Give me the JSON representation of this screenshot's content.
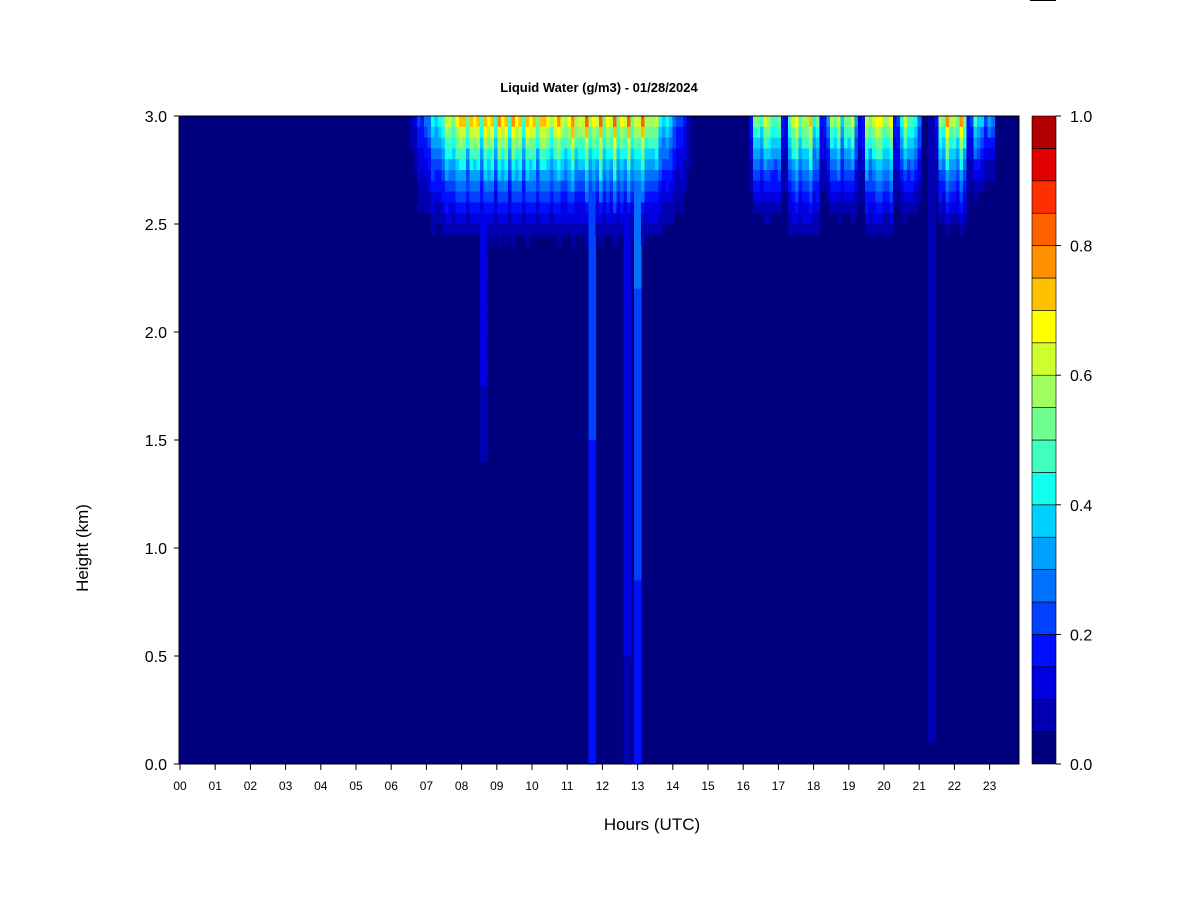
{
  "chart_data": {
    "type": "heatmap",
    "title": "Liquid Water (g/m3) - 01/28/2024",
    "xlabel": "Hours (UTC)",
    "ylabel": "Height (km)",
    "xlim": [
      0,
      24
    ],
    "ylim": [
      0.0,
      3.0
    ],
    "x_tick_labels": [
      "00",
      "01",
      "02",
      "03",
      "04",
      "05",
      "06",
      "07",
      "08",
      "09",
      "10",
      "11",
      "12",
      "13",
      "14",
      "15",
      "16",
      "17",
      "18",
      "19",
      "20",
      "21",
      "22",
      "23"
    ],
    "y_ticks": [
      0.0,
      0.5,
      1.0,
      1.5,
      2.0,
      2.5,
      3.0
    ],
    "y_tick_labels": [
      "0.0",
      "0.5",
      "1.0",
      "1.5",
      "2.0",
      "2.5",
      "3.0"
    ],
    "colorbar": {
      "range": [
        0.0,
        1.0
      ],
      "levels": 20,
      "tick_values": [
        0.0,
        0.2,
        0.4,
        0.6,
        0.8,
        1.0
      ],
      "tick_labels": [
        "0.0",
        "0.2",
        "0.4",
        "0.6",
        "0.8",
        "1.0"
      ],
      "colors": [
        "#00007f",
        "#0000b0",
        "#0000e0",
        "#0010ff",
        "#0040ff",
        "#0070ff",
        "#00a0ff",
        "#00d0ff",
        "#10ffef",
        "#40ffbf",
        "#70ff8f",
        "#a0ff5f",
        "#d0ff2f",
        "#ffff00",
        "#ffc000",
        "#ff9000",
        "#ff6000",
        "#ff3000",
        "#e00000",
        "#b00000",
        "#7f0000"
      ]
    },
    "cloud_segments": [
      {
        "start": 6.5,
        "end": 14.75,
        "max_value": 0.9,
        "base_km": 2.3
      },
      {
        "start": 16.3,
        "end": 17.3,
        "max_value": 0.75,
        "base_km": 2.4
      },
      {
        "start": 17.3,
        "end": 18.4,
        "max_value": 0.8,
        "base_km": 2.3
      },
      {
        "start": 18.4,
        "end": 19.5,
        "max_value": 0.72,
        "base_km": 2.4
      },
      {
        "start": 19.5,
        "end": 20.5,
        "max_value": 0.85,
        "base_km": 2.3
      },
      {
        "start": 20.5,
        "end": 21.2,
        "max_value": 0.7,
        "base_km": 2.4
      },
      {
        "start": 21.6,
        "end": 22.6,
        "max_value": 0.85,
        "base_km": 2.35
      },
      {
        "start": 22.6,
        "end": 23.1,
        "max_value": 0.55,
        "base_km": 2.5
      },
      {
        "start": 23.1,
        "end": 23.3,
        "max_value": 0.4,
        "base_km": 2.6
      }
    ],
    "streaks": [
      {
        "x": 8.7,
        "value": 0.12,
        "bottom_km": 1.4
      },
      {
        "x": 11.8,
        "value": 0.25,
        "bottom_km": 0.0
      },
      {
        "x": 12.8,
        "value": 0.15,
        "bottom_km": 0.0
      },
      {
        "x": 13.1,
        "value": 0.28,
        "bottom_km": 0.0
      },
      {
        "x": 21.5,
        "value": 0.1,
        "bottom_km": 0.1
      }
    ]
  }
}
